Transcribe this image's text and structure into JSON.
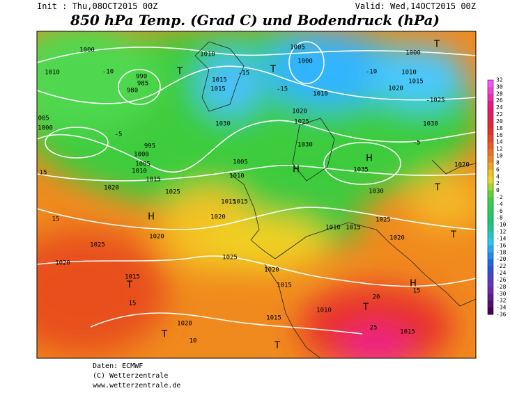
{
  "header": {
    "init": "Init : Thu,08OCT2015 00Z",
    "valid": "Valid: Wed,14OCT2015 00Z",
    "title": "850 hPa Temp. (Grad C) und Bodendruck (hPa)"
  },
  "legend": {
    "labels": [
      32,
      30,
      28,
      26,
      24,
      22,
      20,
      18,
      16,
      14,
      12,
      10,
      8,
      6,
      4,
      2,
      0,
      -2,
      -4,
      -6,
      -8,
      -10,
      -12,
      -14,
      -16,
      -18,
      -20,
      -22,
      -24,
      -26,
      -28,
      -30,
      -32,
      -34,
      -36
    ]
  },
  "map": {
    "labels": [
      "1000",
      "1010",
      "-10",
      "990",
      "985",
      "980",
      "T",
      "1005",
      "1000",
      "-5",
      "995",
      "1000",
      "1005",
      "1010",
      "1015",
      "1020",
      "15",
      "15",
      "H",
      "1025",
      "1020",
      "T",
      "1015",
      "15",
      "1020",
      "T",
      "10",
      "1020",
      "1025",
      "1015",
      "1020",
      "1025",
      "1020",
      "1015",
      "1015",
      "T",
      "1010",
      "T",
      "20",
      "25",
      "1015",
      "H",
      "15",
      "1030",
      "1005",
      "1010",
      "1015",
      "H",
      "1030",
      "1035",
      "H",
      "1030",
      "1025",
      "1020",
      "1015",
      "1010",
      "T",
      "1020",
      "T",
      "1010",
      "1015",
      "1015",
      "-15",
      "T",
      "1005",
      "1000",
      "1010",
      "1020",
      "1025",
      "T",
      "1000",
      "1010",
      "1015",
      "1020",
      "-1025",
      "-10",
      "-15",
      "1030",
      "-5"
    ]
  },
  "footer": {
    "lines": [
      "Daten: ECMWF",
      "(C) Wetterzentrale",
      "www.wetterzentrale.de"
    ]
  }
}
